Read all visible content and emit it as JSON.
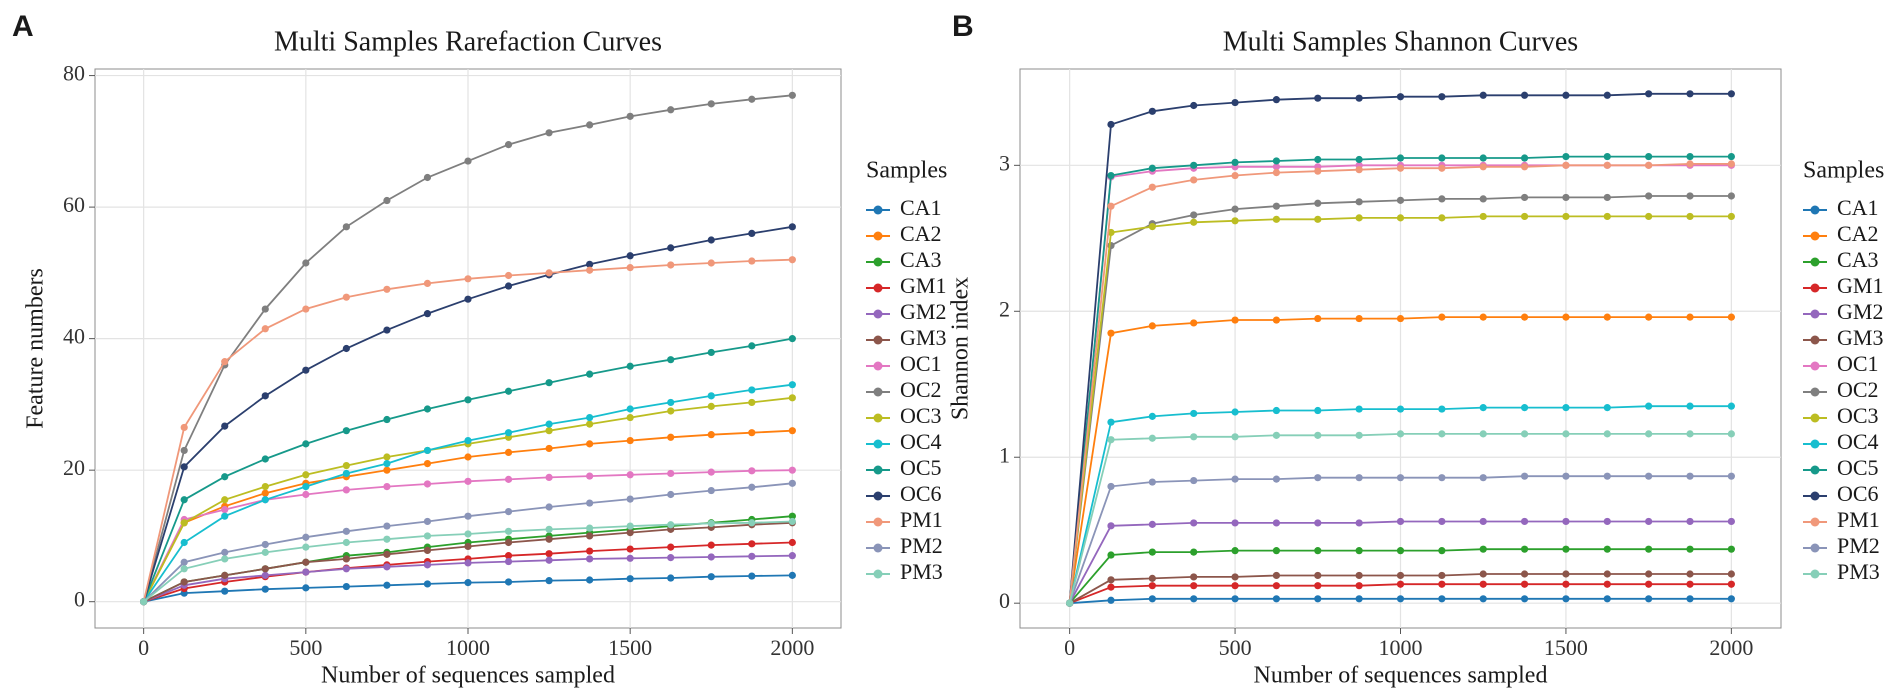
{
  "chart_data": [
    {
      "type": "line",
      "panel_label": "A",
      "title": "Multi Samples Rarefaction Curves",
      "x_label": "Number of sequences sampled",
      "y_label": "Feature numbers",
      "legend_title": "Samples",
      "legend": "right",
      "grid": true,
      "x": [
        0,
        125,
        250,
        375,
        500,
        625,
        750,
        875,
        1000,
        1125,
        1250,
        1375,
        1500,
        1625,
        1750,
        1875,
        2000
      ],
      "xlim": [
        -150,
        2150
      ],
      "xticks": [
        0,
        500,
        1000,
        1500,
        2000
      ],
      "ylim": [
        -4,
        81
      ],
      "yticks": [
        0,
        20,
        40,
        60,
        80
      ],
      "series": [
        {
          "name": "CA1",
          "color": "#1f77b4",
          "values": [
            0,
            1.3,
            1.6,
            1.9,
            2.1,
            2.3,
            2.5,
            2.7,
            2.9,
            3.0,
            3.2,
            3.3,
            3.5,
            3.6,
            3.8,
            3.9,
            4
          ]
        },
        {
          "name": "CA2",
          "color": "#ff7f0e",
          "values": [
            0,
            12,
            14.5,
            16.5,
            18,
            19,
            20,
            21,
            22,
            22.7,
            23.3,
            24,
            24.5,
            25,
            25.4,
            25.7,
            26
          ]
        },
        {
          "name": "CA3",
          "color": "#2ca02c",
          "values": [
            0,
            3,
            4,
            5,
            6,
            7,
            7.5,
            8.3,
            9,
            9.5,
            10,
            10.5,
            11,
            11.5,
            12,
            12.5,
            13
          ]
        },
        {
          "name": "GM1",
          "color": "#d62728",
          "values": [
            0,
            2,
            3,
            3.8,
            4.5,
            5.1,
            5.6,
            6.1,
            6.5,
            7,
            7.3,
            7.7,
            8,
            8.3,
            8.6,
            8.8,
            9
          ]
        },
        {
          "name": "GM2",
          "color": "#9467bd",
          "values": [
            0,
            2.5,
            3.5,
            4,
            4.5,
            5,
            5.3,
            5.6,
            5.9,
            6.1,
            6.3,
            6.5,
            6.6,
            6.7,
            6.8,
            6.9,
            7
          ]
        },
        {
          "name": "GM3",
          "color": "#8c564b",
          "values": [
            0,
            3,
            4,
            5,
            6,
            6.5,
            7.2,
            7.8,
            8.4,
            9,
            9.5,
            10,
            10.5,
            11,
            11.3,
            11.7,
            12
          ]
        },
        {
          "name": "OC1",
          "color": "#e377c2",
          "values": [
            0,
            12.5,
            14,
            15.5,
            16.3,
            17,
            17.5,
            17.9,
            18.3,
            18.6,
            18.9,
            19.1,
            19.3,
            19.5,
            19.7,
            19.9,
            20
          ]
        },
        {
          "name": "OC2",
          "color": "#7f7f7f",
          "values": [
            0,
            23,
            36,
            44.5,
            51.5,
            57,
            61,
            64.5,
            67,
            69.5,
            71.3,
            72.5,
            73.8,
            74.8,
            75.7,
            76.4,
            77
          ]
        },
        {
          "name": "OC3",
          "color": "#bcbd22",
          "values": [
            0,
            12,
            15.5,
            17.5,
            19.3,
            20.7,
            22,
            23,
            24,
            25,
            26,
            27,
            28,
            29,
            29.7,
            30.3,
            31
          ]
        },
        {
          "name": "OC4",
          "color": "#17becf",
          "values": [
            0,
            9,
            13,
            15.5,
            17.5,
            19.5,
            21,
            23,
            24.5,
            25.7,
            27,
            28,
            29.3,
            30.3,
            31.3,
            32.2,
            33
          ]
        },
        {
          "name": "OC5",
          "color": "#16998a",
          "values": [
            0,
            15.5,
            19,
            21.7,
            24,
            26,
            27.7,
            29.3,
            30.7,
            32,
            33.3,
            34.6,
            35.8,
            36.8,
            37.9,
            38.9,
            40
          ]
        },
        {
          "name": "OC6",
          "color": "#2b3f6e",
          "values": [
            0,
            20.5,
            26.7,
            31.3,
            35.2,
            38.5,
            41.3,
            43.8,
            46,
            48,
            49.7,
            51.3,
            52.6,
            53.8,
            55,
            56,
            57
          ]
        },
        {
          "name": "PM1",
          "color": "#f0987a",
          "values": [
            0,
            26.5,
            36.5,
            41.5,
            44.5,
            46.3,
            47.5,
            48.4,
            49.1,
            49.6,
            50,
            50.4,
            50.8,
            51.2,
            51.5,
            51.8,
            52
          ]
        },
        {
          "name": "PM2",
          "color": "#8a94b8",
          "values": [
            0,
            6,
            7.5,
            8.7,
            9.8,
            10.7,
            11.5,
            12.2,
            13,
            13.7,
            14.4,
            15,
            15.6,
            16.3,
            16.9,
            17.4,
            18
          ]
        },
        {
          "name": "PM3",
          "color": "#86cfb8",
          "values": [
            0,
            5,
            6.5,
            7.5,
            8.3,
            9,
            9.5,
            10,
            10.3,
            10.7,
            11,
            11.2,
            11.5,
            11.7,
            11.9,
            12,
            12.2
          ]
        }
      ]
    },
    {
      "type": "line",
      "panel_label": "B",
      "title": "Multi Samples Shannon Curves",
      "x_label": "Number of sequences sampled",
      "y_label": "Shannon index",
      "legend_title": "Samples",
      "legend": "right",
      "grid": true,
      "x": [
        0,
        125,
        250,
        375,
        500,
        625,
        750,
        875,
        1000,
        1125,
        1250,
        1375,
        1500,
        1625,
        1750,
        1875,
        2000
      ],
      "xlim": [
        -150,
        2150
      ],
      "xticks": [
        0,
        500,
        1000,
        1500,
        2000
      ],
      "ylim": [
        -0.17,
        3.66
      ],
      "yticks": [
        0,
        1,
        2,
        3
      ],
      "series": [
        {
          "name": "CA1",
          "color": "#1f77b4",
          "values": [
            0,
            0.02,
            0.03,
            0.03,
            0.03,
            0.03,
            0.03,
            0.03,
            0.03,
            0.03,
            0.03,
            0.03,
            0.03,
            0.03,
            0.03,
            0.03,
            0.03
          ]
        },
        {
          "name": "CA2",
          "color": "#ff7f0e",
          "values": [
            0,
            1.85,
            1.9,
            1.92,
            1.94,
            1.94,
            1.95,
            1.95,
            1.95,
            1.96,
            1.96,
            1.96,
            1.96,
            1.96,
            1.96,
            1.96,
            1.96
          ]
        },
        {
          "name": "CA3",
          "color": "#2ca02c",
          "values": [
            0,
            0.33,
            0.35,
            0.35,
            0.36,
            0.36,
            0.36,
            0.36,
            0.36,
            0.36,
            0.37,
            0.37,
            0.37,
            0.37,
            0.37,
            0.37,
            0.37
          ]
        },
        {
          "name": "GM1",
          "color": "#d62728",
          "values": [
            0,
            0.11,
            0.12,
            0.12,
            0.12,
            0.12,
            0.12,
            0.12,
            0.13,
            0.13,
            0.13,
            0.13,
            0.13,
            0.13,
            0.13,
            0.13,
            0.13
          ]
        },
        {
          "name": "GM2",
          "color": "#9467bd",
          "values": [
            0,
            0.53,
            0.54,
            0.55,
            0.55,
            0.55,
            0.55,
            0.55,
            0.56,
            0.56,
            0.56,
            0.56,
            0.56,
            0.56,
            0.56,
            0.56,
            0.56
          ]
        },
        {
          "name": "GM3",
          "color": "#8c564b",
          "values": [
            0,
            0.16,
            0.17,
            0.18,
            0.18,
            0.19,
            0.19,
            0.19,
            0.19,
            0.19,
            0.2,
            0.2,
            0.2,
            0.2,
            0.2,
            0.2,
            0.2
          ]
        },
        {
          "name": "OC1",
          "color": "#e377c2",
          "values": [
            0,
            2.92,
            2.96,
            2.98,
            2.99,
            2.99,
            2.99,
            3.0,
            3.0,
            3.0,
            3.0,
            3.0,
            3.0,
            3.0,
            3.0,
            3.0,
            3.0
          ]
        },
        {
          "name": "OC2",
          "color": "#7f7f7f",
          "values": [
            0,
            2.45,
            2.6,
            2.66,
            2.7,
            2.72,
            2.74,
            2.75,
            2.76,
            2.77,
            2.77,
            2.78,
            2.78,
            2.78,
            2.79,
            2.79,
            2.79
          ]
        },
        {
          "name": "OC3",
          "color": "#bcbd22",
          "values": [
            0,
            2.54,
            2.58,
            2.61,
            2.62,
            2.63,
            2.63,
            2.64,
            2.64,
            2.64,
            2.65,
            2.65,
            2.65,
            2.65,
            2.65,
            2.65,
            2.65
          ]
        },
        {
          "name": "OC4",
          "color": "#17becf",
          "values": [
            0,
            1.24,
            1.28,
            1.3,
            1.31,
            1.32,
            1.32,
            1.33,
            1.33,
            1.33,
            1.34,
            1.34,
            1.34,
            1.34,
            1.35,
            1.35,
            1.35
          ]
        },
        {
          "name": "OC5",
          "color": "#16998a",
          "values": [
            0,
            2.93,
            2.98,
            3.0,
            3.02,
            3.03,
            3.04,
            3.04,
            3.05,
            3.05,
            3.05,
            3.05,
            3.06,
            3.06,
            3.06,
            3.06,
            3.06
          ]
        },
        {
          "name": "OC6",
          "color": "#2b3f6e",
          "values": [
            0,
            3.28,
            3.37,
            3.41,
            3.43,
            3.45,
            3.46,
            3.46,
            3.47,
            3.47,
            3.48,
            3.48,
            3.48,
            3.48,
            3.49,
            3.49,
            3.49
          ]
        },
        {
          "name": "PM1",
          "color": "#f0987a",
          "values": [
            0,
            2.72,
            2.85,
            2.9,
            2.93,
            2.95,
            2.96,
            2.97,
            2.98,
            2.98,
            2.99,
            2.99,
            3.0,
            3.0,
            3.0,
            3.01,
            3.01
          ]
        },
        {
          "name": "PM2",
          "color": "#8a94b8",
          "values": [
            0,
            0.8,
            0.83,
            0.84,
            0.85,
            0.85,
            0.86,
            0.86,
            0.86,
            0.86,
            0.86,
            0.87,
            0.87,
            0.87,
            0.87,
            0.87,
            0.87
          ]
        },
        {
          "name": "PM3",
          "color": "#86cfb8",
          "values": [
            0,
            1.12,
            1.13,
            1.14,
            1.14,
            1.15,
            1.15,
            1.15,
            1.16,
            1.16,
            1.16,
            1.16,
            1.16,
            1.16,
            1.16,
            1.16,
            1.16
          ]
        }
      ]
    }
  ]
}
